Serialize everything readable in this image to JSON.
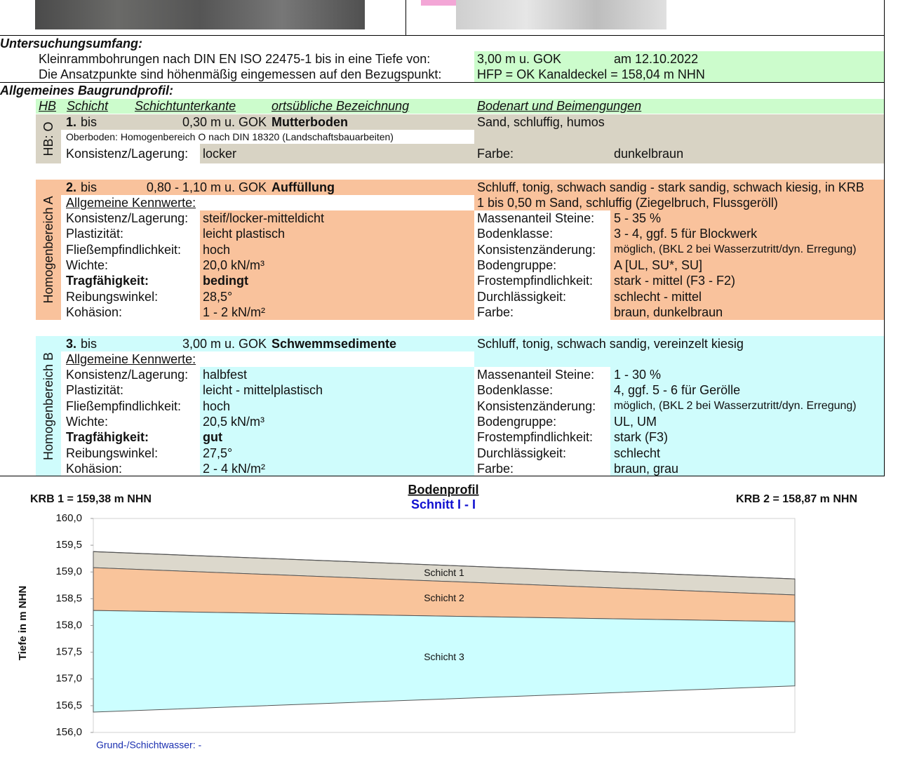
{
  "scope": {
    "title": "Untersuchungsumfang:",
    "rows": [
      [
        "Kleinrammbohrungen nach DIN EN ISO 22475-1 bis in eine Tiefe von:",
        "3,00 m u. GOK",
        "am 12.10.2022"
      ],
      [
        "Die Ansatzpunkte sind höhenmäßig eingemessen auf den Bezugspunkt:",
        "HFP = OK Kanaldeckel = 158,04 m NHN"
      ]
    ]
  },
  "profile": {
    "title": "Allgemeines Baugrundprofil:",
    "header": [
      "HB",
      "Schicht",
      "Schichtunterkante",
      "ortsübliche Bezeichnung",
      "Bodenart und Beimengungen"
    ],
    "layers": [
      {
        "hb": "HB: O",
        "num": "1.",
        "bis": "bis",
        "depth": "0,30 m u. GOK",
        "name": "Mutterboden",
        "color": "#d8d3c4",
        "soil": [
          "Sand, schluffig, humos"
        ],
        "note": "Oberboden: Homogenbereich O nach DIN 18320 (Landschaftsbauarbeiten)",
        "left": [
          {
            "label": "Konsistenz/Lagerung:",
            "value": "locker"
          }
        ],
        "right": [
          {
            "label": "Farbe:",
            "value": "dunkelbraun"
          }
        ]
      },
      {
        "hb": "Homogenbereich A",
        "num": "2.",
        "bis": "bis",
        "depth": "0,80 - 1,10 m u. GOK",
        "name": "Auffüllung",
        "color": "#f9c29c",
        "soil": [
          "Schluff, tonig, schwach sandig - stark sandig, schwach kiesig, in KRB",
          "1 bis 0,50 m Sand, schluffig (Ziegelbruch, Flussgeröll)"
        ],
        "sub": "Allgemeine Kennwerte:",
        "left": [
          {
            "label": "Konsistenz/Lagerung:",
            "value": "steif/locker-mitteldicht"
          },
          {
            "label": "Plastizität:",
            "value": "leicht plastisch"
          },
          {
            "label": "Fließempfindlichkeit:",
            "value": "hoch"
          },
          {
            "label": "Wichte:",
            "value": "20,0 kN/m³"
          },
          {
            "label": "Tragfähigkeit:",
            "value": "bedingt",
            "bold": true
          },
          {
            "label": "Reibungswinkel:",
            "value": "28,5°"
          },
          {
            "label": "Kohäsion:",
            "value": "1 - 2 kN/m²"
          }
        ],
        "right": [
          {
            "label": "Massenanteil Steine:",
            "value": "5 - 35 %"
          },
          {
            "label": "Bodenklasse:",
            "value": "3 - 4, ggf. 5 für Blockwerk"
          },
          {
            "label": "Konsistenzänderung:",
            "value": "möglich, (BKL 2 bei Wasserzutritt/dyn. Erregung)"
          },
          {
            "label": "Bodengruppe:",
            "value": "A [UL, SU*, SU]"
          },
          {
            "label": "Frostempfindlichkeit:",
            "value": "stark - mittel (F3 - F2)"
          },
          {
            "label": "Durchlässigkeit:",
            "value": "schlecht - mittel"
          },
          {
            "label": "Farbe:",
            "value": "braun, dunkelbraun"
          }
        ]
      },
      {
        "hb": "Homogenbereich B",
        "num": "3.",
        "bis": "bis",
        "depth": "3,00 m u. GOK",
        "name": "Schwemmsedimente",
        "color": "#cffcfc",
        "soil": [
          "Schluff, tonig, schwach sandig, vereinzelt kiesig"
        ],
        "sub": "Allgemeine Kennwerte:",
        "left": [
          {
            "label": "Konsistenz/Lagerung:",
            "value": "halbfest"
          },
          {
            "label": "Plastizität:",
            "value": "leicht - mittelplastisch"
          },
          {
            "label": "Fließempfindlichkeit:",
            "value": "hoch"
          },
          {
            "label": "Wichte:",
            "value": "20,5 kN/m³"
          },
          {
            "label": "Tragfähigkeit:",
            "value": "gut",
            "bold": true
          },
          {
            "label": "Reibungswinkel:",
            "value": "27,5°"
          },
          {
            "label": "Kohäsion:",
            "value": "2 - 4 kN/m²"
          }
        ],
        "right": [
          {
            "label": "Massenanteil Steine:",
            "value": "1 - 30 %"
          },
          {
            "label": "Bodenklasse:",
            "value": "4, ggf. 5 - 6 für Gerölle"
          },
          {
            "label": "Konsistenzänderung:",
            "value": "möglich, (BKL 2 bei Wasserzutritt/dyn. Erregung)"
          },
          {
            "label": "Bodengruppe:",
            "value": "UL, UM"
          },
          {
            "label": "Frostempfindlichkeit:",
            "value": "stark (F3)"
          },
          {
            "label": "Durchlässigkeit:",
            "value": "schlecht"
          },
          {
            "label": "Farbe:",
            "value": "braun, grau"
          }
        ]
      }
    ]
  },
  "chart_data": {
    "type": "area",
    "title": "Bodenprofil",
    "subtitle": "Schnitt I - I",
    "ylabel": "Tiefe in m NHN",
    "boreholes": [
      "KRB 1 = 159,38 m NHN",
      "KRB 2 = 158,87 m NHN"
    ],
    "surface": [
      159.38,
      158.87
    ],
    "series": [
      {
        "name": "Schicht 1",
        "color": "#dcd8cc",
        "values": [
          159.08,
          158.57
        ]
      },
      {
        "name": "Schicht 2",
        "color": "#f9c49b",
        "values": [
          158.28,
          158.07
        ]
      },
      {
        "name": "Schicht 3",
        "color": "#ccfeff",
        "values": [
          156.38,
          156.87
        ]
      }
    ],
    "ylim": [
      156,
      160
    ],
    "yticks": [
      {
        "value": 156,
        "label": "156,0"
      },
      {
        "value": 156.5,
        "label": "156,5"
      },
      {
        "value": 157,
        "label": "157,0"
      },
      {
        "value": 157.5,
        "label": "157,5"
      },
      {
        "value": 158,
        "label": "158,0"
      },
      {
        "value": 158.5,
        "label": "158,5"
      },
      {
        "value": 159,
        "label": "159,0"
      },
      {
        "value": 159.5,
        "label": "159,5"
      },
      {
        "value": 160,
        "label": "160,0"
      }
    ],
    "footnote": "Grund-/Schichtwasser: -"
  }
}
